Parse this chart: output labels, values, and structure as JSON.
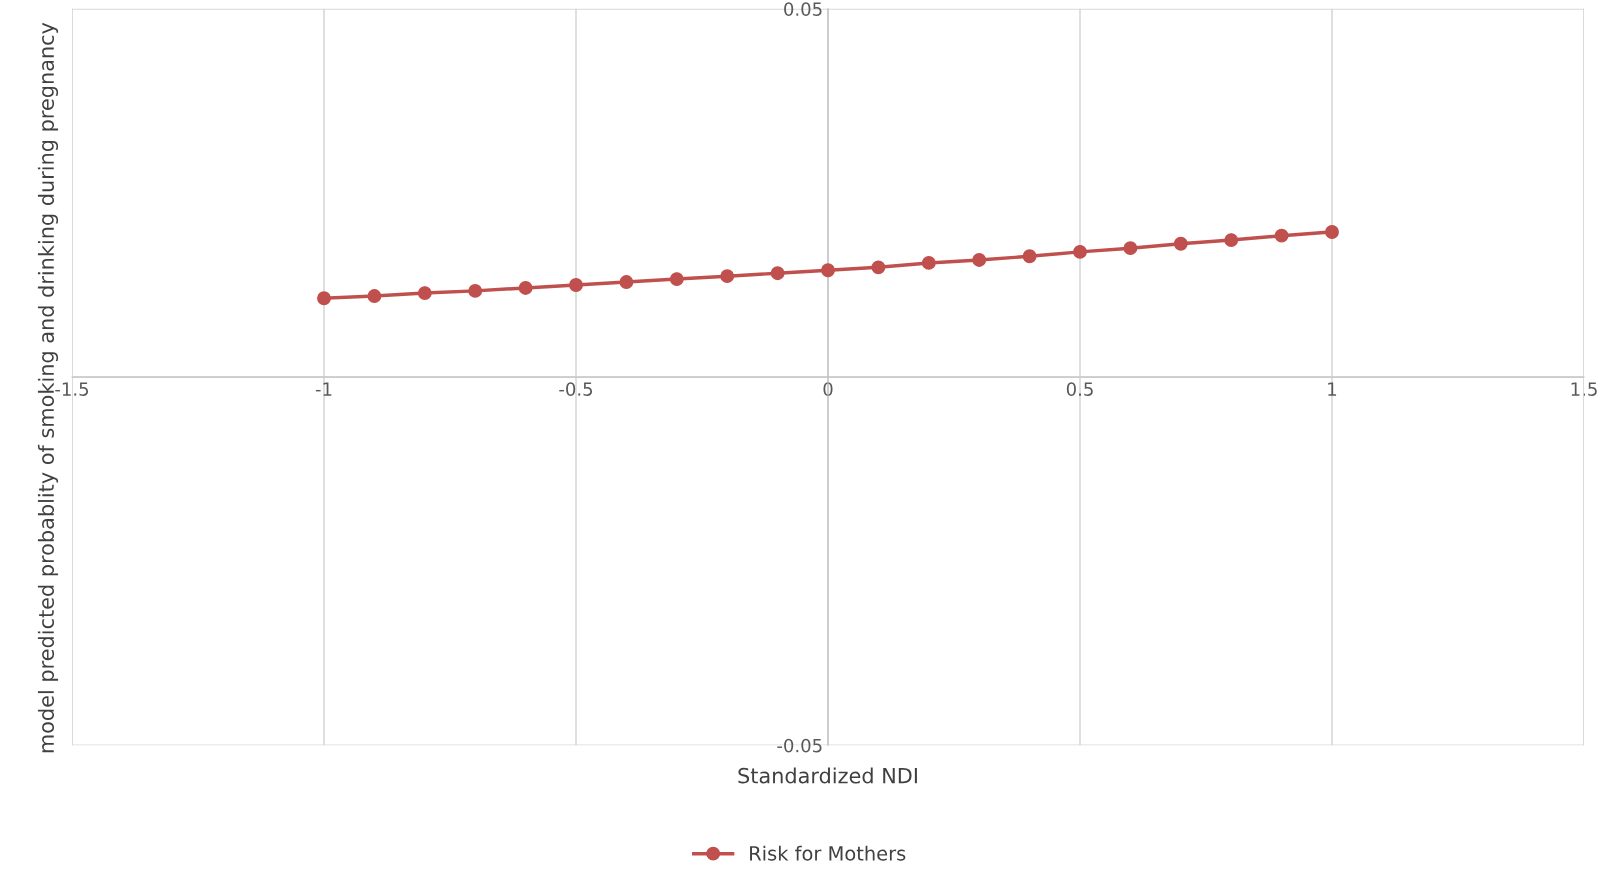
{
  "chart_data": {
    "type": "line",
    "xlabel": "Standardized NDI",
    "ylabel": "model predicted probablity of smoking and drinking during pregnancy",
    "x": [
      -1,
      -0.9,
      -0.8,
      -0.7,
      -0.6,
      -0.5,
      -0.4,
      -0.3,
      -0.2,
      -0.1,
      0,
      0.1,
      0.2,
      0.3,
      0.4,
      0.5,
      0.6,
      0.7,
      0.8,
      0.9,
      1
    ],
    "series": [
      {
        "name": "Risk for Mothers",
        "color": "#c0504d",
        "values": [
          0.0107,
          0.011,
          0.0114,
          0.0117,
          0.0121,
          0.0125,
          0.0129,
          0.0133,
          0.0137,
          0.0141,
          0.0145,
          0.0149,
          0.0155,
          0.0159,
          0.0164,
          0.017,
          0.0175,
          0.0181,
          0.0186,
          0.0192,
          0.0197
        ]
      }
    ],
    "xlim": [
      -1.5,
      1.5
    ],
    "xticks": [
      -1.5,
      -1,
      -0.5,
      0,
      0.5,
      1,
      1.5
    ],
    "ylim": [
      -0.05,
      0.05
    ],
    "yticks": [
      -0.05,
      {
        "value": 0,
        "label": null
      },
      0.05
    ],
    "grid": true,
    "legend": "bottom",
    "marker": "circle",
    "line_style": "solid"
  }
}
